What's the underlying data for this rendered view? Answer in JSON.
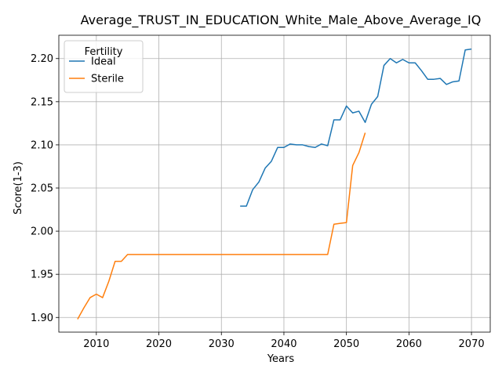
{
  "chart_data": {
    "type": "line",
    "title": "Average_TRUST_IN_EDUCATION_White_Male_Above_Average_IQ",
    "xlabel": "Years",
    "ylabel": "Score(1-3)",
    "xlim": [
      2004,
      2073
    ],
    "ylim": [
      1.883,
      2.227
    ],
    "xticks": [
      2010,
      2020,
      2030,
      2040,
      2050,
      2060,
      2070
    ],
    "yticks": [
      1.9,
      1.95,
      2.0,
      2.05,
      2.1,
      2.15,
      2.2
    ],
    "xtick_labels": [
      "2010",
      "2020",
      "2030",
      "2040",
      "2050",
      "2060",
      "2070"
    ],
    "ytick_labels": [
      "1.90",
      "1.95",
      "2.00",
      "2.05",
      "2.10",
      "2.15",
      "2.20"
    ],
    "grid": true,
    "legend": {
      "title": "Fertility",
      "placement": "upper-left"
    },
    "series": [
      {
        "name": "Ideal",
        "color": "#1f77b4",
        "x": [
          2033,
          2034,
          2035,
          2036,
          2037,
          2038,
          2039,
          2040,
          2041,
          2042,
          2043,
          2044,
          2045,
          2046,
          2047,
          2048,
          2049,
          2050,
          2051,
          2052,
          2053,
          2054,
          2055,
          2056,
          2057,
          2058,
          2059,
          2060,
          2061,
          2062,
          2063,
          2064,
          2065,
          2066,
          2067,
          2068,
          2069,
          2070
        ],
        "y": [
          2.029,
          2.029,
          2.048,
          2.057,
          2.073,
          2.081,
          2.097,
          2.097,
          2.101,
          2.1,
          2.1,
          2.098,
          2.097,
          2.101,
          2.099,
          2.129,
          2.129,
          2.145,
          2.137,
          2.139,
          2.126,
          2.147,
          2.156,
          2.192,
          2.2,
          2.195,
          2.199,
          2.195,
          2.195,
          2.186,
          2.176,
          2.176,
          2.177,
          2.17,
          2.173,
          2.174,
          2.21,
          2.211
        ]
      },
      {
        "name": "Sterile",
        "color": "#ff7f0e",
        "x": [
          2007,
          2008,
          2009,
          2010,
          2011,
          2012,
          2013,
          2014,
          2015,
          2016,
          2020,
          2030,
          2040,
          2045,
          2046,
          2047,
          2048,
          2049,
          2050,
          2051,
          2052,
          2053
        ],
        "y": [
          1.898,
          1.911,
          1.923,
          1.927,
          1.923,
          1.942,
          1.965,
          1.965,
          1.973,
          1.973,
          1.973,
          1.973,
          1.973,
          1.973,
          1.973,
          1.973,
          2.008,
          2.009,
          2.01,
          2.076,
          2.091,
          2.114
        ]
      }
    ]
  }
}
